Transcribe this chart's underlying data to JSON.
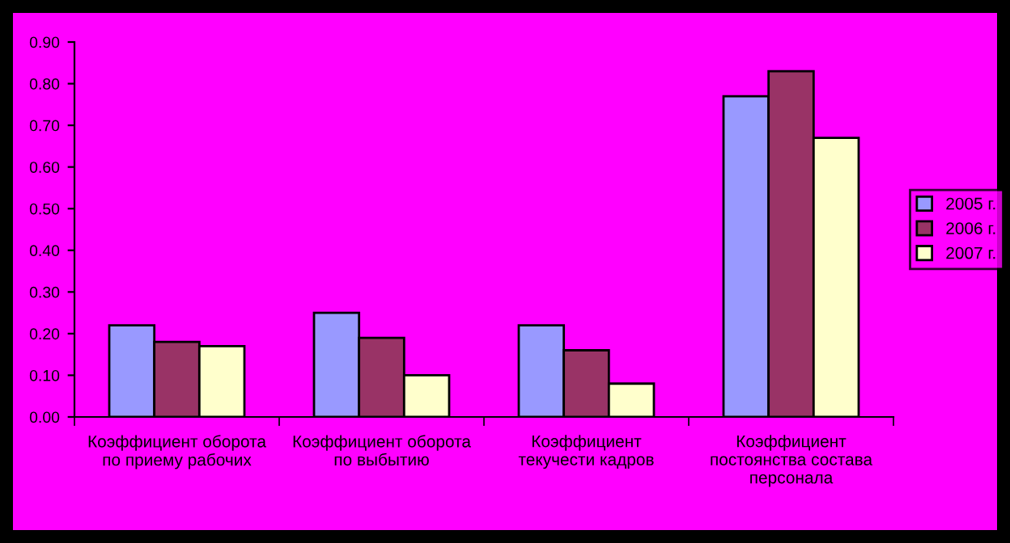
{
  "chart_data": {
    "type": "bar",
    "categories": [
      "Коэффициент оборота\nпо приему рабочих",
      "Коэффициент оборота\nпо выбытию",
      "Коэффициент\nтекучести кадров",
      "Коэффициент\nпостоянства состава\nперсонала"
    ],
    "series": [
      {
        "name": "2005 г.",
        "color": "#9999ff",
        "values": [
          0.22,
          0.25,
          0.22,
          0.77
        ]
      },
      {
        "name": "2006 г.",
        "color": "#993366",
        "values": [
          0.18,
          0.19,
          0.16,
          0.83
        ]
      },
      {
        "name": "2007 г.",
        "color": "#ffffcc",
        "values": [
          0.17,
          0.1,
          0.08,
          0.67
        ]
      }
    ],
    "ylim": [
      0,
      0.9
    ],
    "yticks": [
      {
        "value": 0,
        "label": "0.00"
      },
      {
        "value": 0.1,
        "label": "0.10"
      },
      {
        "value": 0.2,
        "label": "0.20"
      },
      {
        "value": 0.3,
        "label": "0.30"
      },
      {
        "value": 0.4,
        "label": "0.40"
      },
      {
        "value": 0.5,
        "label": "0.50"
      },
      {
        "value": 0.6,
        "label": "0.60"
      },
      {
        "value": 0.7,
        "label": "0.70"
      },
      {
        "value": 0.8,
        "label": "0.80"
      },
      {
        "value": 0.9,
        "label": "0.90"
      }
    ],
    "grid": false,
    "legend": "right"
  }
}
